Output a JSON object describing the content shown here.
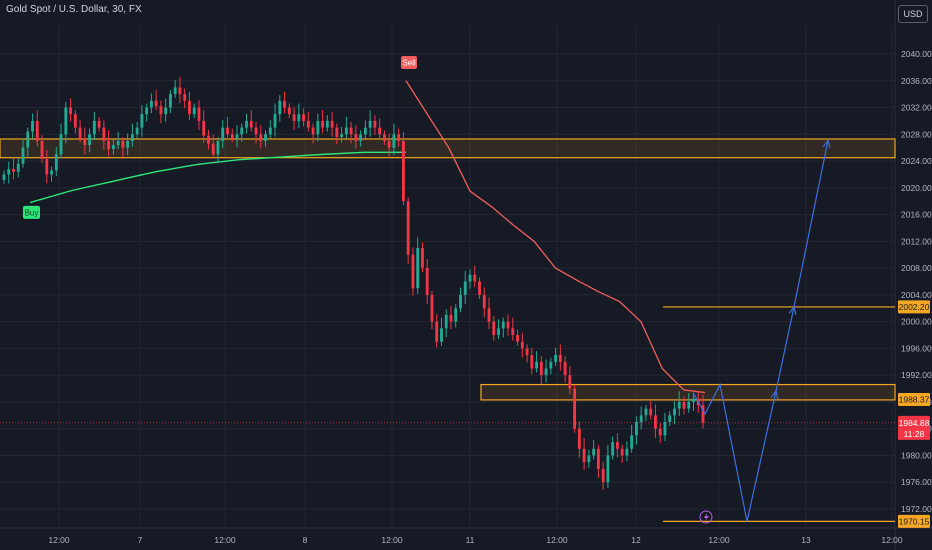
{
  "header": {
    "title": "Gold Spot / U.S. Dollar, 30, FX",
    "currency_label": "USD"
  },
  "colors": {
    "background": "#161a25",
    "grid": "#232733",
    "bull": "#22ab94",
    "bear": "#f23645",
    "zone": "#f5a623",
    "projection": "#3d6fe0",
    "support_line": "#2ee67a",
    "resistance_line": "#f25e5e",
    "axis_text": "#b2b5be"
  },
  "chart_data": {
    "type": "candlestick",
    "title": "Gold Spot / U.S. Dollar, 30, FX",
    "x_ticks": [
      "12:00",
      "7",
      "12:00",
      "8",
      "12:00",
      "11",
      "12:00",
      "12",
      "12:00",
      "13",
      "12:00"
    ],
    "y_ticks": [
      1972,
      1976,
      1980,
      1984,
      1988,
      1992,
      1996,
      2000,
      2004,
      2008,
      2012,
      2016,
      2020,
      2024,
      2028,
      2032,
      2036,
      2040
    ],
    "ylim": [
      1969.5,
      2044
    ],
    "price_labels": [
      {
        "value": 2002.2,
        "text": "2002.20"
      },
      {
        "value": 1988.37,
        "text": "1988.37"
      },
      {
        "value": 1970.15,
        "text": "1970.15"
      }
    ],
    "last_price": {
      "value": 1984.88,
      "text": "1984.88",
      "countdown": "11:28"
    },
    "signals": [
      {
        "text": "Buy",
        "value": 2017.0
      },
      {
        "text": "Sell",
        "value": 2037.6
      }
    ],
    "zones": [
      {
        "top": 2027.3,
        "bottom": 2024.5
      },
      {
        "top": 1990.6,
        "bottom": 1988.3
      }
    ],
    "levels": [
      2002.2,
      1970.15
    ],
    "projection_path": [
      1989.4,
      1986.2,
      1990.6,
      1970.15,
      1989.6,
      2002.2,
      2027.1
    ],
    "trailing_support": [
      [
        2017.8,
        2019.6,
        2021.0,
        2022.4,
        2023.5,
        2024.2,
        2024.6,
        2025.0,
        2025.3,
        2025.3
      ],
      "buy"
    ],
    "trailing_resistance": [
      2036.0,
      2031.0,
      2026.0,
      2019.5,
      2017.2,
      2014.5,
      2012.0,
      2008.0,
      2006.2,
      2004.5,
      2003.0,
      2000.0,
      1993.0,
      1989.8,
      1989.4
    ],
    "series": [
      {
        "name": "",
        "values": [
          2022.0,
          2022.8,
          2022.4,
          2023.6,
          2026.0,
          2028.4,
          2030.0,
          2027.0,
          2024.3,
          2022.0,
          2022.6,
          2025.0,
          2028.0,
          2032.0,
          2031.0,
          2029.0,
          2027.4,
          2026.4,
          2028.0,
          2030.0,
          2029.0,
          2027.0,
          2025.8,
          2026.4,
          2027.0,
          2026.0,
          2027.0,
          2028.0,
          2029.0,
          2031.0,
          2032.0,
          2033.0,
          2032.2,
          2031.0,
          2032.0,
          2034.0,
          2035.0,
          2034.0,
          2033.0,
          2031.0,
          2032.0,
          2030.0,
          2027.8,
          2026.6,
          2025.0,
          2027.0,
          2029.0,
          2028.0,
          2027.4,
          2028.0,
          2029.0,
          2030.0,
          2029.0,
          2028.0,
          2027.0,
          2028.0,
          2029.0,
          2031.0,
          2033.0,
          2032.0,
          2031.0,
          2030.0,
          2031.0,
          2030.0,
          2029.0,
          2028.0,
          2030.0,
          2029.0,
          2030.0,
          2029.0,
          2027.6,
          2028.0,
          2029.0,
          2028.0,
          2027.0,
          2028.0,
          2029.0,
          2030.0,
          2029.0,
          2028.0,
          2027.0,
          2026.0,
          2028.0,
          2027.0,
          2018.0,
          2010.0,
          2005.0,
          2011.0,
          2008.0,
          2004.0,
          2000.0,
          1997.0,
          1999.0,
          2001.0,
          2000.0,
          2002.0,
          2004.0,
          2006.0,
          2007.0,
          2006.0,
          2004.0,
          2002.0,
          2000.0,
          1998.0,
          1999.0,
          2000.0,
          1999.0,
          1998.0,
          1997.0,
          1996.0,
          1995.0,
          1993.0,
          1994.0,
          1992.0,
          1993.0,
          1994.0,
          1995.0,
          1994.0,
          1992.0,
          1990.0,
          1984.0,
          1981.0,
          1979.0,
          1980.0,
          1981.0,
          1978.0,
          1976.0,
          1980.0,
          1982.0,
          1981.0,
          1980.0,
          1981.0,
          1983.0,
          1985.0,
          1986.0,
          1987.0,
          1986.0,
          1984.0,
          1983.0,
          1985.0,
          1986.0,
          1987.0,
          1988.0,
          1987.0,
          1988.0,
          1988.5,
          1987.5,
          1984.9
        ]
      }
    ]
  }
}
